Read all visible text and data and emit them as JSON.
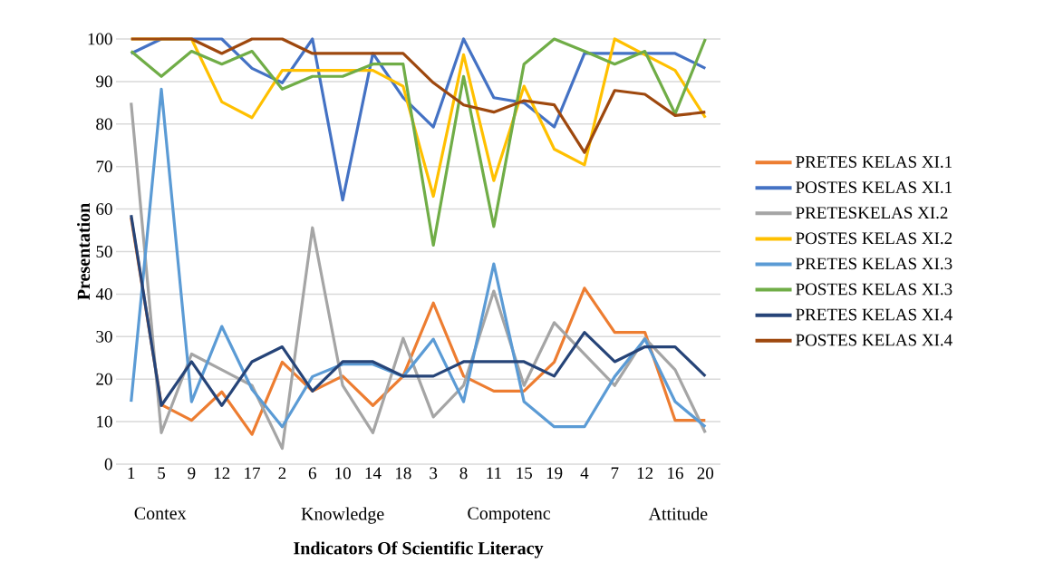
{
  "chart_data": {
    "type": "line",
    "xlabel": "Indicators Of Scientific Literacy",
    "ylabel": "Presentation",
    "categories": [
      "1",
      "5",
      "9",
      "12",
      "17",
      "2",
      "6",
      "10",
      "14",
      "18",
      "3",
      "8",
      "11",
      "15",
      "19",
      "4",
      "7",
      "12",
      "16",
      "20"
    ],
    "annotations": [
      "Contex",
      "Knowledge",
      "Compotenc",
      "Attitude"
    ],
    "ylim": [
      0,
      100
    ],
    "yticks": [
      0,
      10,
      20,
      30,
      40,
      50,
      60,
      70,
      80,
      90,
      100
    ],
    "grid": "y",
    "legend": "right",
    "marker": "none",
    "line_style": "solid",
    "series": [
      {
        "name": "PRETES KELAS XI.1",
        "color": "#ed7d31",
        "values": [
          58,
          14,
          10.3,
          17,
          7,
          24,
          17.2,
          20.7,
          13.8,
          20.7,
          37.9,
          20.7,
          17.2,
          17.2,
          24,
          41.4,
          31,
          31,
          10.3,
          10.3
        ]
      },
      {
        "name": "POSTES KELAS XI.1",
        "color": "#4472c4",
        "values": [
          96.6,
          100,
          100,
          100,
          93.1,
          89.7,
          100,
          62.1,
          96.6,
          86.2,
          79.3,
          100,
          86.2,
          85,
          79.3,
          96.6,
          96.6,
          96.6,
          96.6,
          93.1
        ]
      },
      {
        "name": "PRETESKELAS XI.2",
        "color": "#a5a5a5",
        "values": [
          85,
          7.4,
          25.9,
          22.2,
          18.5,
          3.7,
          55.6,
          18.5,
          7.4,
          29.6,
          11.1,
          18.5,
          40.7,
          18.5,
          33.3,
          25.9,
          18.5,
          29.6,
          22.2,
          7.4
        ]
      },
      {
        "name": "POSTES KELAS XI.2",
        "color": "#ffc000",
        "values": [
          100,
          100,
          100,
          85.2,
          81.5,
          92.6,
          92.6,
          92.6,
          92.6,
          88.9,
          63,
          96.3,
          66.7,
          88.9,
          74.1,
          70.4,
          100,
          96.3,
          92.6,
          81.5
        ]
      },
      {
        "name": "PRETES KELAS XI.3",
        "color": "#5b9bd5",
        "values": [
          14.7,
          88.2,
          14.7,
          32.4,
          17.6,
          8.8,
          20.6,
          23.5,
          23.5,
          20.6,
          29.4,
          14.7,
          47.1,
          14.7,
          8.8,
          8.8,
          20.6,
          29.4,
          14.7,
          8.8
        ]
      },
      {
        "name": "POSTES KELAS XI.3",
        "color": "#70ad47",
        "values": [
          97.1,
          91.2,
          97.1,
          94.1,
          97.1,
          88.2,
          91.2,
          91.2,
          94.1,
          94.1,
          51.5,
          91.2,
          55.9,
          94.1,
          100,
          97.1,
          94.1,
          97.1,
          82.4,
          100
        ]
      },
      {
        "name": "PRETES KELAS XI.4",
        "color": "#264478",
        "values": [
          58.6,
          13.8,
          24.1,
          13.8,
          24.1,
          27.6,
          17.2,
          24.1,
          24.1,
          20.7,
          20.7,
          24.1,
          24.1,
          24.1,
          20.7,
          31,
          24.1,
          27.6,
          27.6,
          20.7
        ]
      },
      {
        "name": "POSTES KELAS XI.4",
        "color": "#9e480e",
        "values": [
          100,
          100,
          100,
          96.6,
          100,
          100,
          96.6,
          96.6,
          96.6,
          96.6,
          89.7,
          84.5,
          82.8,
          85.5,
          84.5,
          73.3,
          87.9,
          87,
          82,
          82.8
        ]
      }
    ]
  }
}
